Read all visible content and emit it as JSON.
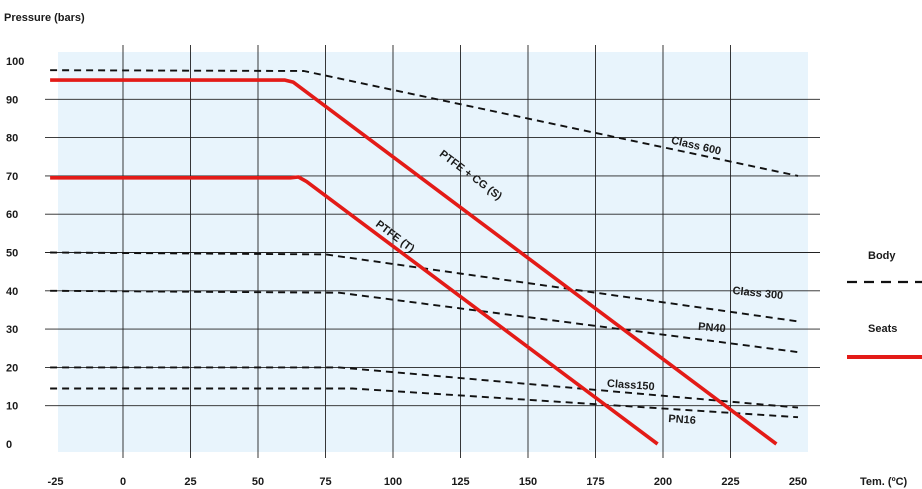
{
  "chart_data": {
    "type": "line",
    "xlabel": "Tem. (ºC)",
    "ylabel": "Pressure (bars)",
    "xlim": [
      -25,
      250
    ],
    "ylim": [
      0,
      100
    ],
    "x_ticks": [
      -25,
      0,
      25,
      50,
      75,
      100,
      125,
      150,
      175,
      200,
      225,
      250
    ],
    "y_ticks": [
      0,
      10,
      20,
      30,
      40,
      50,
      60,
      70,
      80,
      90,
      100
    ],
    "grid": true,
    "colors": {
      "body": "#111111",
      "seats": "#e31b17",
      "plot_bg": "#e8f4fc",
      "grid": "#222222"
    },
    "legend": {
      "position": "right",
      "entries": [
        {
          "label": "Body",
          "style": "dashed",
          "color": "#111111"
        },
        {
          "label": "Seats",
          "style": "solid",
          "color": "#e31b17"
        }
      ]
    },
    "series": [
      {
        "name": "Class 600",
        "group": "body",
        "style": "dashed",
        "points": [
          [
            -27,
            97.6
          ],
          [
            67,
            97.4
          ],
          [
            250,
            70
          ]
        ]
      },
      {
        "name": "Class 300",
        "group": "body",
        "style": "dashed",
        "points": [
          [
            -27,
            50
          ],
          [
            75,
            49.5
          ],
          [
            250,
            32
          ]
        ]
      },
      {
        "name": "PN40",
        "group": "body",
        "style": "dashed",
        "points": [
          [
            -27,
            40
          ],
          [
            80,
            39.5
          ],
          [
            250,
            24
          ]
        ]
      },
      {
        "name": "Class150",
        "group": "body",
        "style": "dashed",
        "points": [
          [
            -27,
            20
          ],
          [
            80,
            20
          ],
          [
            250,
            9.5
          ]
        ]
      },
      {
        "name": "PN16",
        "group": "body",
        "style": "dashed",
        "points": [
          [
            -27,
            14.5
          ],
          [
            85,
            14.5
          ],
          [
            250,
            7
          ]
        ]
      },
      {
        "name": "PTFE + CG (S)",
        "group": "seats",
        "style": "solid",
        "points": [
          [
            -27,
            95
          ],
          [
            60,
            95
          ],
          [
            63,
            94.5
          ],
          [
            242,
            0
          ]
        ]
      },
      {
        "name": "PTFE (T)",
        "group": "seats",
        "style": "solid",
        "points": [
          [
            -27,
            69.5
          ],
          [
            62,
            69.5
          ],
          [
            65,
            69.7
          ],
          [
            68,
            68.5
          ],
          [
            198,
            0
          ]
        ]
      }
    ],
    "annotations": [
      {
        "text": "Class 600",
        "x": 212,
        "y": 77,
        "rotate": 13,
        "anchor": "middle"
      },
      {
        "text": "PTFE + CG (S)",
        "x": 128,
        "y": 69.5,
        "rotate": 37,
        "anchor": "middle"
      },
      {
        "text": "PTFE (T)",
        "x": 100,
        "y": 53.5,
        "rotate": 37,
        "anchor": "middle"
      },
      {
        "text": "Class 300",
        "x": 235,
        "y": 38.5,
        "rotate": 6,
        "anchor": "middle"
      },
      {
        "text": "PN40",
        "x": 218,
        "y": 29.5,
        "rotate": 5,
        "anchor": "middle"
      },
      {
        "text": "Class150",
        "x": 188,
        "y": 14.5,
        "rotate": 4,
        "anchor": "middle"
      },
      {
        "text": "PN16",
        "x": 207,
        "y": 5.5,
        "rotate": 4,
        "anchor": "middle"
      }
    ]
  }
}
